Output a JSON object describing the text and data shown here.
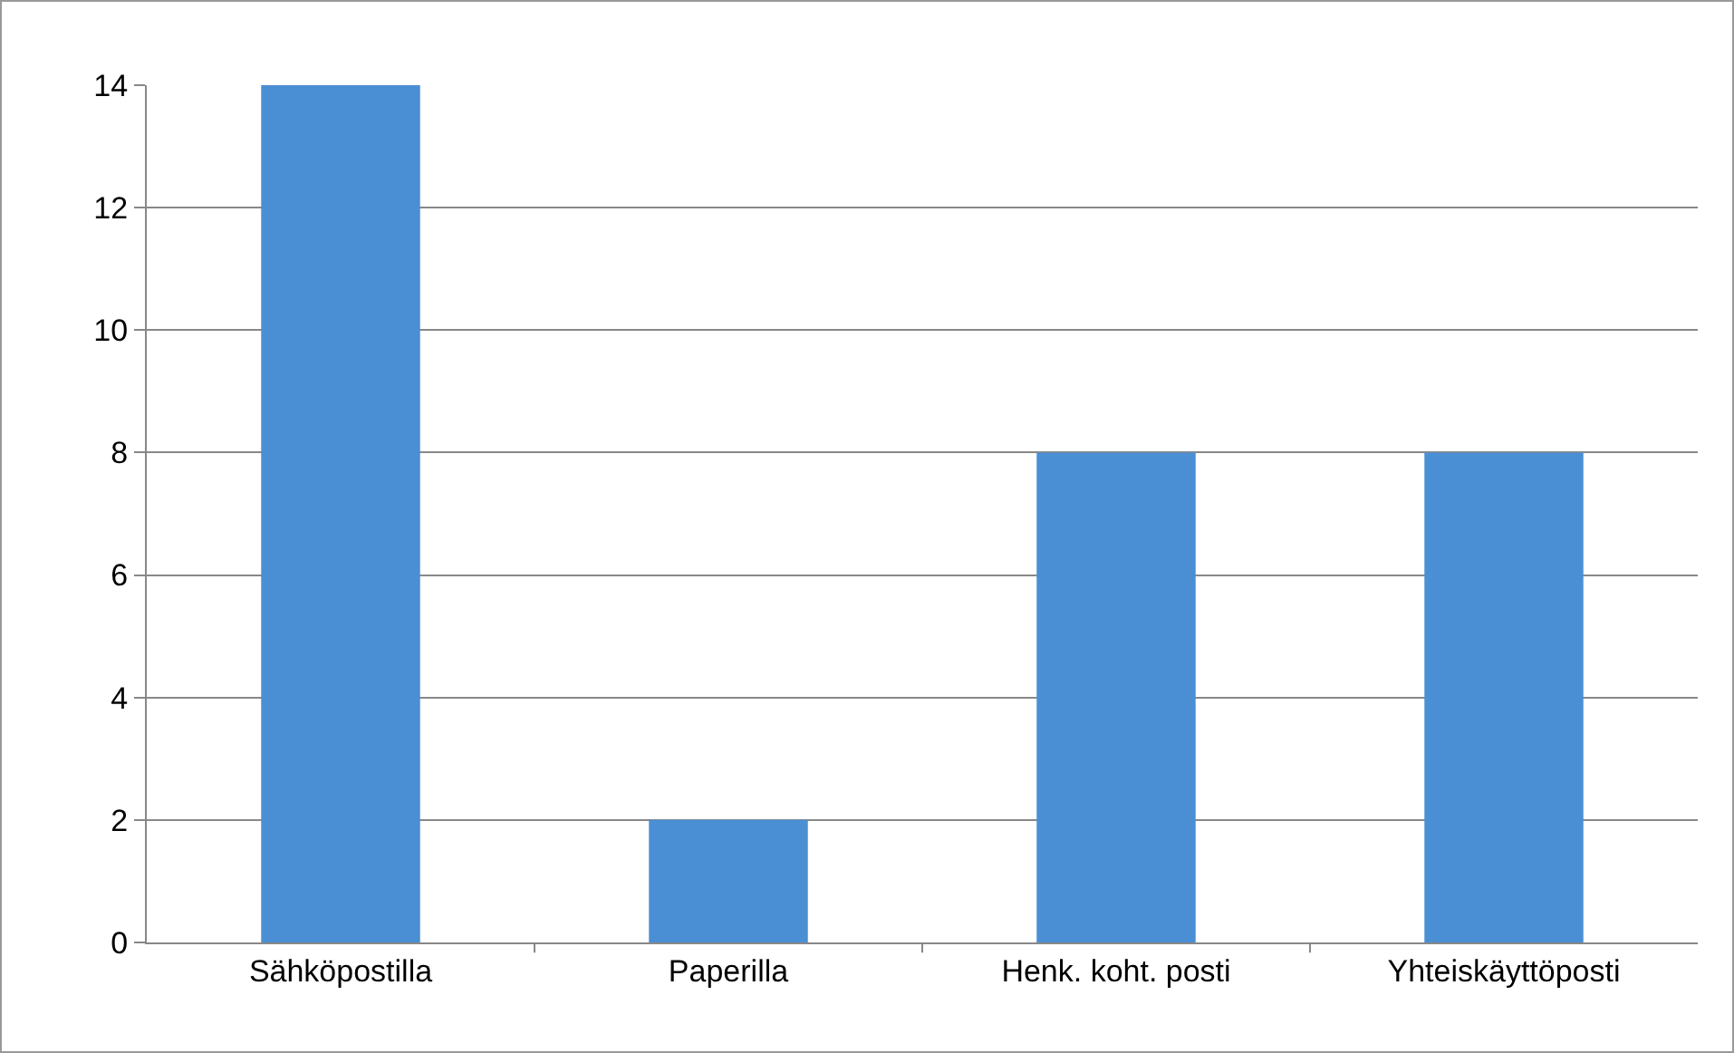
{
  "chart_data": {
    "type": "bar",
    "categories": [
      "Sähköpostilla",
      "Paperilla",
      "Henk. koht. posti",
      "Yhteiskäyttöposti"
    ],
    "values": [
      14,
      2,
      8,
      8
    ],
    "color": "#4a8fd4",
    "ylim": [
      0,
      14
    ],
    "yticks": [
      0,
      2,
      4,
      6,
      8,
      10,
      12,
      14
    ],
    "grid": "y"
  }
}
